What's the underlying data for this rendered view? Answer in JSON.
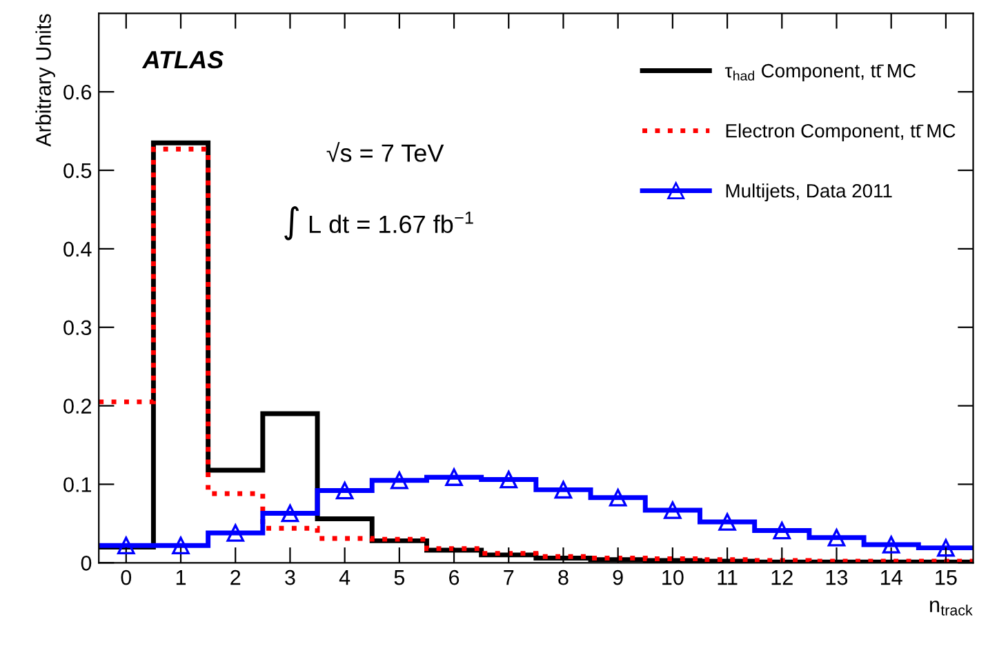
{
  "chart_data": {
    "type": "histogram",
    "xlabel": "n$_{track}$",
    "ylabel": "Arbitrary Units",
    "bins": [
      -0.5,
      0.5,
      1.5,
      2.5,
      3.5,
      4.5,
      5.5,
      6.5,
      7.5,
      8.5,
      9.5,
      10.5,
      11.5,
      12.5,
      13.5,
      14.5,
      15.5
    ],
    "series": [
      {
        "name": "τ$_{had}$ Component, tt̄ MC",
        "color": "#000000",
        "line_style": "solid",
        "values": [
          0.02,
          0.535,
          0.118,
          0.19,
          0.056,
          0.028,
          0.016,
          0.01,
          0.006,
          0.004,
          0.003,
          0.002,
          0.001,
          0.001,
          0.001,
          0.001
        ]
      },
      {
        "name": "Electron Component, tt̄ MC",
        "color": "#ff0000",
        "line_style": "dotted",
        "values": [
          0.205,
          0.527,
          0.088,
          0.044,
          0.031,
          0.03,
          0.018,
          0.012,
          0.008,
          0.006,
          0.005,
          0.004,
          0.003,
          0.002,
          0.002,
          0.002
        ]
      },
      {
        "name": "Multijets, Data 2011",
        "color": "#0000ff",
        "line_style": "solid",
        "marker": "triangle",
        "values": [
          0.022,
          0.022,
          0.038,
          0.063,
          0.092,
          0.105,
          0.109,
          0.106,
          0.093,
          0.083,
          0.067,
          0.052,
          0.041,
          0.032,
          0.023,
          0.019
        ]
      },
      {
        "type": "scatter",
        "color": "#0000ff",
        "marker": "triangle",
        "x": [
          0,
          1,
          2,
          3,
          4,
          5,
          6,
          7,
          8,
          9,
          10,
          11,
          12,
          13,
          14,
          15
        ],
        "values": [
          0.022,
          0.022,
          0.038,
          0.063,
          0.092,
          0.105,
          0.109,
          0.106,
          0.093,
          0.083,
          0.067,
          0.052,
          0.041,
          0.032,
          0.023,
          0.019
        ]
      }
    ],
    "xlim": [
      -0.5,
      15.5
    ],
    "xticks": [
      0,
      1,
      2,
      3,
      4,
      5,
      6,
      7,
      8,
      9,
      10,
      11,
      12,
      13,
      14,
      15
    ],
    "ylim": [
      0,
      0.7
    ],
    "yticks": [
      0,
      0.1,
      0.2,
      0.3,
      0.4,
      0.5,
      0.6
    ],
    "legend": "top right",
    "grid": false,
    "annotations": [
      "ATLAS",
      "√s = 7 TeV",
      "∫ L dt = 1.67 fb$^{−1}$"
    ]
  }
}
